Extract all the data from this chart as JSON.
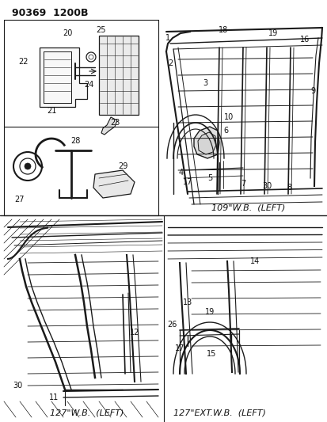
{
  "title": "90369  1200B",
  "bg_color": "#ffffff",
  "fig_width": 4.14,
  "fig_height": 5.33,
  "dpi": 100,
  "line_color": "#1a1a1a",
  "text_color": "#111111",
  "gray_light": "#d0d0d0",
  "gray_mid": "#a0a0a0",
  "panel_labels": {
    "top_right": "109\"W.B.  (LEFT)",
    "bottom_left": "127\"W.B.  (LEFT)",
    "bottom_right": "127\"EXT.W.B.  (LEFT)"
  }
}
